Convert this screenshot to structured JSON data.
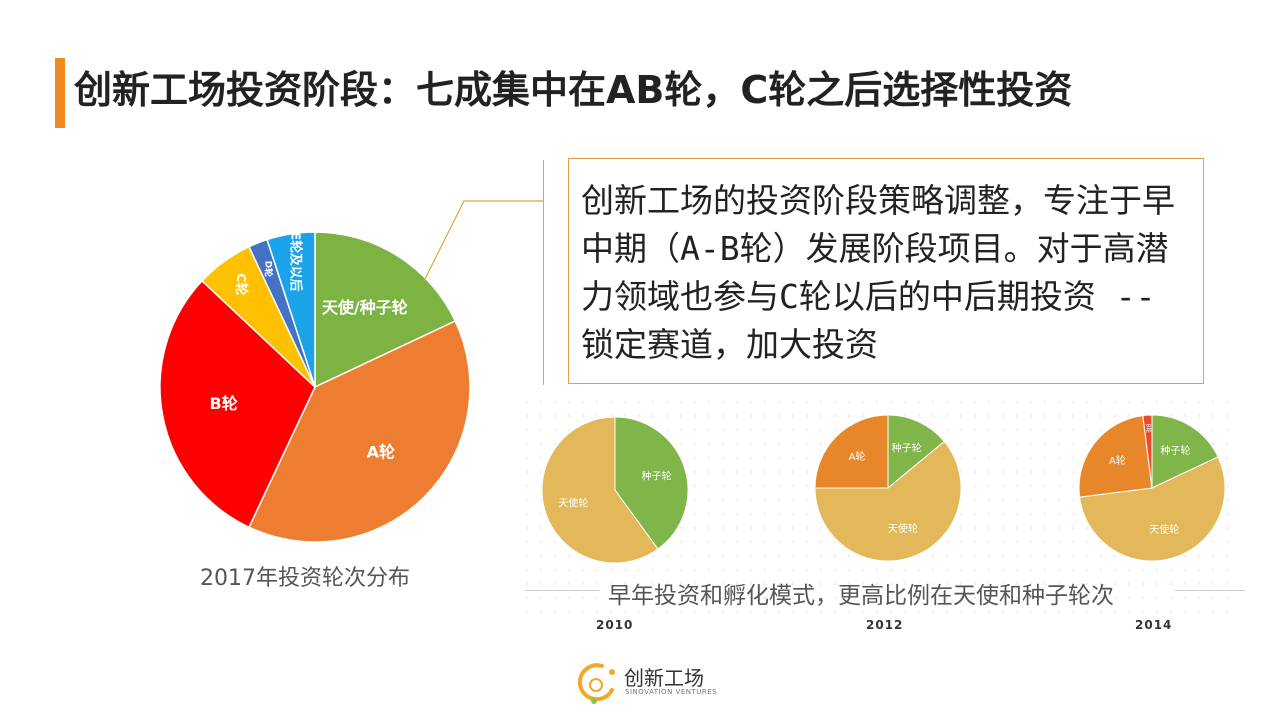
{
  "slide": {
    "title": "创新工场投资阶段：七成集中在AB轮，C轮之后选择性投资",
    "callout_text": "创新工场的投资阶段策略调整，专注于早中期（A-B轮）发展阶段项目。对于高潜力领域也参与C轮以后的中后期投资 -- 锁定赛道，加大投资",
    "caption_early": "早年投资和孵化模式，更高比例在天使和种子轮次",
    "logo_cn": "创新工场",
    "logo_en": "SINOVATION VENTURES",
    "accent_color": "#f08a1e"
  },
  "chart_data": [
    {
      "type": "pie",
      "title": "2017年投资轮次分布",
      "labels": [
        "天使/种子轮",
        "A轮",
        "B轮",
        "C轮",
        "D轮",
        "E轮及以后"
      ],
      "values": [
        18,
        39,
        30,
        6,
        2,
        5
      ],
      "colors": [
        "#7cb342",
        "#ed7d31",
        "#ff0000",
        "#ffc000",
        "#4472c4",
        "#1aa3e8"
      ]
    },
    {
      "type": "pie",
      "title": "2010",
      "labels": [
        "种子轮",
        "天使轮"
      ],
      "values": [
        40,
        60
      ],
      "colors": [
        "#80b54a",
        "#e2b85a"
      ]
    },
    {
      "type": "pie",
      "title": "2012",
      "labels": [
        "种子轮",
        "天使轮",
        "A轮"
      ],
      "values": [
        14,
        61,
        25
      ],
      "colors": [
        "#80b54a",
        "#e2b85a",
        "#e8872a"
      ]
    },
    {
      "type": "pie",
      "title": "2014",
      "labels": [
        "种子轮",
        "天使轮",
        "A轮",
        "B轮"
      ],
      "values": [
        18,
        55,
        25,
        2
      ],
      "colors": [
        "#80b54a",
        "#e2b85a",
        "#e8872a",
        "#e84a30"
      ]
    }
  ]
}
